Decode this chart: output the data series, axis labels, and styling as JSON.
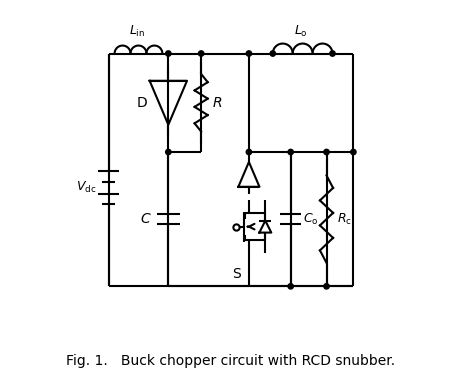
{
  "fig_width": 4.62,
  "fig_height": 3.68,
  "dpi": 100,
  "bg_color": "#ffffff",
  "line_color": "#000000",
  "line_width": 1.5,
  "caption": "Fig. 1.   Buck chopper circuit with RCD snubber.",
  "caption_fontsize": 10
}
